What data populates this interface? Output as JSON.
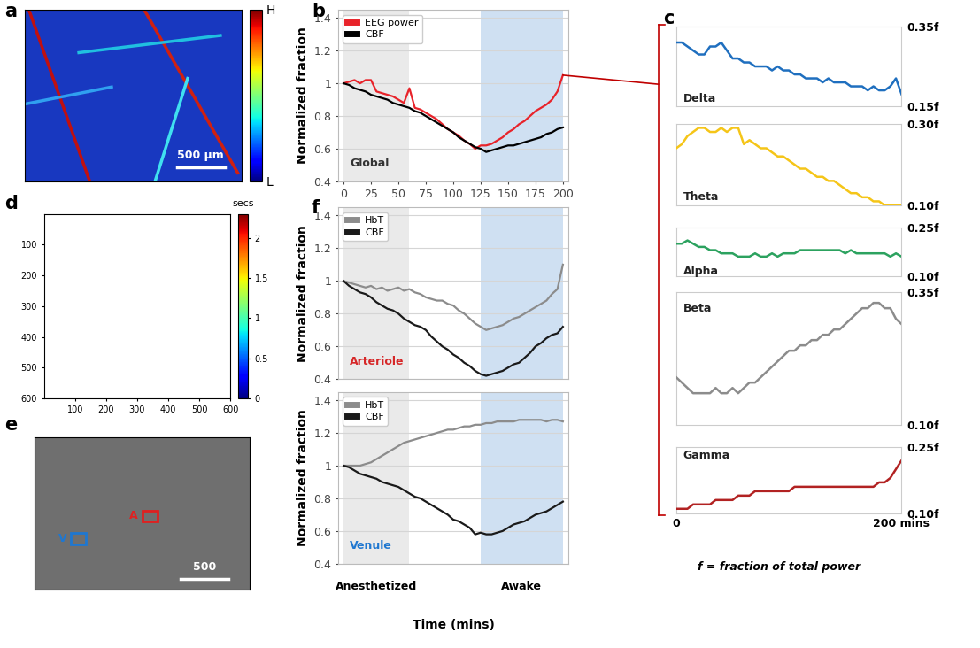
{
  "chart_data": [
    {
      "type": "line",
      "panel": "b",
      "annotation": {
        "text": "Global",
        "color": "#333333"
      },
      "ylabel": "Normalized fraction",
      "x": [
        0,
        5,
        10,
        15,
        20,
        25,
        30,
        35,
        40,
        45,
        50,
        55,
        60,
        65,
        70,
        75,
        80,
        85,
        90,
        95,
        100,
        105,
        110,
        115,
        120,
        125,
        130,
        135,
        140,
        145,
        150,
        155,
        160,
        165,
        170,
        175,
        180,
        185,
        190,
        195,
        200
      ],
      "series": [
        {
          "name": "EEG power",
          "color": "#e8232a",
          "values": [
            1.0,
            1.01,
            1.02,
            1.0,
            1.02,
            1.02,
            0.95,
            0.94,
            0.93,
            0.92,
            0.9,
            0.88,
            0.97,
            0.85,
            0.84,
            0.82,
            0.8,
            0.78,
            0.75,
            0.72,
            0.7,
            0.68,
            0.65,
            0.63,
            0.6,
            0.62,
            0.62,
            0.63,
            0.65,
            0.67,
            0.7,
            0.72,
            0.75,
            0.77,
            0.8,
            0.83,
            0.85,
            0.87,
            0.9,
            0.95,
            1.05
          ]
        },
        {
          "name": "CBF",
          "color": "#000000",
          "values": [
            1.0,
            0.99,
            0.97,
            0.96,
            0.95,
            0.93,
            0.92,
            0.91,
            0.9,
            0.88,
            0.87,
            0.86,
            0.85,
            0.83,
            0.82,
            0.8,
            0.78,
            0.76,
            0.74,
            0.72,
            0.7,
            0.67,
            0.65,
            0.63,
            0.61,
            0.6,
            0.58,
            0.59,
            0.6,
            0.61,
            0.62,
            0.62,
            0.63,
            0.64,
            0.65,
            0.66,
            0.67,
            0.69,
            0.7,
            0.72,
            0.73
          ]
        }
      ],
      "xlim": [
        -5,
        205
      ],
      "ylim": [
        0.4,
        1.45
      ],
      "xticks": [
        0,
        25,
        50,
        75,
        100,
        125,
        150,
        175,
        200
      ],
      "yticks": [
        0.4,
        0.6,
        0.8,
        1,
        1.2,
        1.4
      ],
      "grid": "y",
      "legend": "upper left"
    },
    {
      "type": "line",
      "panel": "f",
      "annotation": {
        "text": "Arteriole",
        "color": "#d62728"
      },
      "ylabel": "Normalized fraction",
      "x": [
        0,
        5,
        10,
        15,
        20,
        25,
        30,
        35,
        40,
        45,
        50,
        55,
        60,
        65,
        70,
        75,
        80,
        85,
        90,
        95,
        100,
        105,
        110,
        115,
        120,
        125,
        130,
        135,
        140,
        145,
        150,
        155,
        160,
        165,
        170,
        175,
        180,
        185,
        190,
        195,
        200
      ],
      "series": [
        {
          "name": "HbT",
          "color": "#8c8c8c",
          "values": [
            1.0,
            0.99,
            0.98,
            0.97,
            0.96,
            0.97,
            0.95,
            0.96,
            0.94,
            0.95,
            0.96,
            0.94,
            0.95,
            0.93,
            0.92,
            0.9,
            0.89,
            0.88,
            0.88,
            0.86,
            0.85,
            0.82,
            0.8,
            0.77,
            0.74,
            0.72,
            0.7,
            0.71,
            0.72,
            0.73,
            0.75,
            0.77,
            0.78,
            0.8,
            0.82,
            0.84,
            0.86,
            0.88,
            0.92,
            0.95,
            1.1
          ]
        },
        {
          "name": "CBF",
          "color": "#1a1a1a",
          "values": [
            1.0,
            0.97,
            0.95,
            0.93,
            0.92,
            0.9,
            0.87,
            0.85,
            0.83,
            0.82,
            0.8,
            0.77,
            0.75,
            0.73,
            0.72,
            0.7,
            0.66,
            0.63,
            0.6,
            0.58,
            0.55,
            0.53,
            0.5,
            0.48,
            0.45,
            0.43,
            0.42,
            0.43,
            0.44,
            0.45,
            0.47,
            0.49,
            0.5,
            0.53,
            0.56,
            0.6,
            0.62,
            0.65,
            0.67,
            0.68,
            0.72
          ]
        }
      ],
      "xlim": [
        -5,
        205
      ],
      "ylim": [
        0.4,
        1.45
      ],
      "yticks": [
        0.4,
        0.6,
        0.8,
        1,
        1.2,
        1.4
      ],
      "grid": "y",
      "legend": "upper left",
      "tick_labels": "y"
    },
    {
      "type": "line",
      "annotation": {
        "text": "Venule",
        "color": "#1f77d0"
      },
      "ylabel": "Normalized fraction",
      "x": [
        0,
        5,
        10,
        15,
        20,
        25,
        30,
        35,
        40,
        45,
        50,
        55,
        60,
        65,
        70,
        75,
        80,
        85,
        90,
        95,
        100,
        105,
        110,
        115,
        120,
        125,
        130,
        135,
        140,
        145,
        150,
        155,
        160,
        165,
        170,
        175,
        180,
        185,
        190,
        195,
        200
      ],
      "series": [
        {
          "name": "HbT",
          "color": "#8c8c8c",
          "values": [
            1.0,
            1.0,
            1.0,
            1.0,
            1.01,
            1.02,
            1.04,
            1.06,
            1.08,
            1.1,
            1.12,
            1.14,
            1.15,
            1.16,
            1.17,
            1.18,
            1.19,
            1.2,
            1.21,
            1.22,
            1.22,
            1.23,
            1.24,
            1.24,
            1.25,
            1.25,
            1.26,
            1.26,
            1.27,
            1.27,
            1.27,
            1.27,
            1.28,
            1.28,
            1.28,
            1.28,
            1.28,
            1.27,
            1.28,
            1.28,
            1.27
          ]
        },
        {
          "name": "CBF",
          "color": "#1a1a1a",
          "values": [
            1.0,
            0.99,
            0.97,
            0.95,
            0.94,
            0.93,
            0.92,
            0.9,
            0.89,
            0.88,
            0.87,
            0.85,
            0.83,
            0.81,
            0.8,
            0.78,
            0.76,
            0.74,
            0.72,
            0.7,
            0.67,
            0.66,
            0.64,
            0.62,
            0.58,
            0.59,
            0.58,
            0.58,
            0.59,
            0.6,
            0.62,
            0.64,
            0.65,
            0.66,
            0.68,
            0.7,
            0.71,
            0.72,
            0.74,
            0.76,
            0.78
          ]
        }
      ],
      "xlim": [
        -5,
        205
      ],
      "ylim": [
        0.4,
        1.45
      ],
      "yticks": [
        0.4,
        0.6,
        0.8,
        1,
        1.2,
        1.4
      ],
      "grid": "y",
      "legend": "upper left",
      "tick_labels": "y"
    },
    {
      "type": "line",
      "panel": "c",
      "annotation": {
        "text": "Delta",
        "color": "#222222"
      },
      "x": [
        0,
        5,
        10,
        15,
        20,
        25,
        30,
        35,
        40,
        45,
        50,
        55,
        60,
        65,
        70,
        75,
        80,
        85,
        90,
        95,
        100,
        105,
        110,
        115,
        120,
        125,
        130,
        135,
        140,
        145,
        150,
        155,
        160,
        165,
        170,
        175,
        180,
        185,
        190,
        195,
        200
      ],
      "values": [
        0.31,
        0.31,
        0.3,
        0.29,
        0.28,
        0.28,
        0.3,
        0.3,
        0.31,
        0.29,
        0.27,
        0.27,
        0.26,
        0.26,
        0.25,
        0.25,
        0.25,
        0.24,
        0.25,
        0.24,
        0.24,
        0.23,
        0.23,
        0.22,
        0.22,
        0.22,
        0.21,
        0.22,
        0.21,
        0.21,
        0.21,
        0.2,
        0.2,
        0.2,
        0.19,
        0.2,
        0.19,
        0.19,
        0.2,
        0.22,
        0.18
      ],
      "color": "#1f6fbf",
      "xlim": [
        0,
        200
      ],
      "ylim": [
        0.15,
        0.35
      ],
      "yticks": [
        {
          "value": 0.15,
          "label": "0.15f"
        },
        {
          "value": 0.35,
          "label": "0.35f"
        }
      ],
      "tick_labels": "y"
    },
    {
      "type": "line",
      "annotation": {
        "text": "Theta",
        "color": "#222222"
      },
      "x": [
        0,
        5,
        10,
        15,
        20,
        25,
        30,
        35,
        40,
        45,
        50,
        55,
        60,
        65,
        70,
        75,
        80,
        85,
        90,
        95,
        100,
        105,
        110,
        115,
        120,
        125,
        130,
        135,
        140,
        145,
        150,
        155,
        160,
        165,
        170,
        175,
        180,
        185,
        190,
        195,
        200
      ],
      "values": [
        0.24,
        0.25,
        0.27,
        0.28,
        0.29,
        0.29,
        0.28,
        0.28,
        0.29,
        0.28,
        0.29,
        0.29,
        0.25,
        0.26,
        0.25,
        0.24,
        0.24,
        0.23,
        0.22,
        0.22,
        0.21,
        0.2,
        0.19,
        0.19,
        0.18,
        0.17,
        0.17,
        0.16,
        0.16,
        0.15,
        0.14,
        0.13,
        0.13,
        0.12,
        0.12,
        0.11,
        0.11,
        0.1,
        0.1,
        0.1,
        0.1
      ],
      "color": "#f5c518",
      "xlim": [
        0,
        200
      ],
      "ylim": [
        0.1,
        0.3
      ],
      "yticks": [
        {
          "value": 0.1,
          "label": "0.10f"
        },
        {
          "value": 0.3,
          "label": "0.30f"
        }
      ],
      "tick_labels": "y"
    },
    {
      "type": "line",
      "annotation": {
        "text": "Alpha",
        "color": "#222222"
      },
      "x": [
        0,
        5,
        10,
        15,
        20,
        25,
        30,
        35,
        40,
        45,
        50,
        55,
        60,
        65,
        70,
        75,
        80,
        85,
        90,
        95,
        100,
        105,
        110,
        115,
        120,
        125,
        130,
        135,
        140,
        145,
        150,
        155,
        160,
        165,
        170,
        175,
        180,
        185,
        190,
        195,
        200
      ],
      "values": [
        0.2,
        0.2,
        0.21,
        0.2,
        0.19,
        0.19,
        0.18,
        0.18,
        0.17,
        0.17,
        0.17,
        0.16,
        0.16,
        0.16,
        0.17,
        0.16,
        0.16,
        0.17,
        0.16,
        0.17,
        0.17,
        0.17,
        0.18,
        0.18,
        0.18,
        0.18,
        0.18,
        0.18,
        0.18,
        0.18,
        0.17,
        0.18,
        0.17,
        0.17,
        0.17,
        0.17,
        0.17,
        0.17,
        0.16,
        0.17,
        0.16
      ],
      "color": "#2ca25f",
      "xlim": [
        0,
        200
      ],
      "ylim": [
        0.1,
        0.25
      ],
      "yticks": [
        {
          "value": 0.1,
          "label": "0.10f"
        },
        {
          "value": 0.25,
          "label": "0.25f"
        }
      ],
      "tick_labels": "y"
    },
    {
      "type": "line",
      "annotation": {
        "text": "Beta",
        "color": "#222222"
      },
      "x": [
        0,
        5,
        10,
        15,
        20,
        25,
        30,
        35,
        40,
        45,
        50,
        55,
        60,
        65,
        70,
        75,
        80,
        85,
        90,
        95,
        100,
        105,
        110,
        115,
        120,
        125,
        130,
        135,
        140,
        145,
        150,
        155,
        160,
        165,
        170,
        175,
        180,
        185,
        190,
        195,
        200
      ],
      "values": [
        0.19,
        0.18,
        0.17,
        0.16,
        0.16,
        0.16,
        0.16,
        0.17,
        0.16,
        0.16,
        0.17,
        0.16,
        0.17,
        0.18,
        0.18,
        0.19,
        0.2,
        0.21,
        0.22,
        0.23,
        0.24,
        0.24,
        0.25,
        0.25,
        0.26,
        0.26,
        0.27,
        0.27,
        0.28,
        0.28,
        0.29,
        0.3,
        0.31,
        0.32,
        0.32,
        0.33,
        0.33,
        0.32,
        0.32,
        0.3,
        0.29
      ],
      "color": "#8c8c8c",
      "xlim": [
        0,
        200
      ],
      "ylim": [
        0.1,
        0.35
      ],
      "yticks": [
        {
          "value": 0.1,
          "label": "0.10f"
        },
        {
          "value": 0.35,
          "label": "0.35f"
        }
      ],
      "tick_labels": "y"
    },
    {
      "type": "line",
      "annotation": {
        "text": "Gamma",
        "color": "#222222"
      },
      "x": [
        0,
        5,
        10,
        15,
        20,
        25,
        30,
        35,
        40,
        45,
        50,
        55,
        60,
        65,
        70,
        75,
        80,
        85,
        90,
        95,
        100,
        105,
        110,
        115,
        120,
        125,
        130,
        135,
        140,
        145,
        150,
        155,
        160,
        165,
        170,
        175,
        180,
        185,
        190,
        195,
        200
      ],
      "values": [
        0.11,
        0.11,
        0.11,
        0.12,
        0.12,
        0.12,
        0.12,
        0.13,
        0.13,
        0.13,
        0.13,
        0.14,
        0.14,
        0.14,
        0.15,
        0.15,
        0.15,
        0.15,
        0.15,
        0.15,
        0.15,
        0.16,
        0.16,
        0.16,
        0.16,
        0.16,
        0.16,
        0.16,
        0.16,
        0.16,
        0.16,
        0.16,
        0.16,
        0.16,
        0.16,
        0.16,
        0.17,
        0.17,
        0.18,
        0.2,
        0.22
      ],
      "color": "#b22222",
      "xlim": [
        0,
        200
      ],
      "ylim": [
        0.1,
        0.25
      ],
      "xticks": [
        0,
        {
          "value": 200,
          "label": "200 mins"
        }
      ],
      "yticks": [
        {
          "value": 0.1,
          "label": "0.10f"
        },
        {
          "value": 0.25,
          "label": "0.25f"
        }
      ]
    }
  ],
  "shaded_regions": [
    {
      "label": "Anesthetized",
      "start": 0,
      "end": 60,
      "color": "#d9d9d9"
    },
    {
      "label": "Awake",
      "start": 125,
      "end": 200,
      "color": "#a9c8e8"
    }
  ],
  "xlabel": "Time (mins)",
  "footnote": "f = fraction of total power",
  "image_panels": [
    {
      "panel": "a",
      "scale_bar": "500 µm",
      "colorbar": {
        "labels": [
          "L",
          "H"
        ]
      }
    },
    {
      "panel": "d",
      "xlim": [
        0,
        600
      ],
      "ylim": [
        600,
        0
      ],
      "xticks": [
        100,
        200,
        300,
        400,
        500,
        600
      ],
      "yticks": [
        100,
        200,
        300,
        400,
        500,
        600
      ],
      "colorbar": {
        "title": "secs",
        "range": [
          0,
          2.3
        ],
        "ticks": [
          0,
          0.5,
          1,
          1.5,
          2
        ]
      }
    },
    {
      "panel": "e",
      "scale_bar": "500",
      "regions": [
        {
          "label": "V",
          "color": "#1f77d0"
        },
        {
          "label": "A",
          "color": "#e02020"
        }
      ]
    }
  ]
}
